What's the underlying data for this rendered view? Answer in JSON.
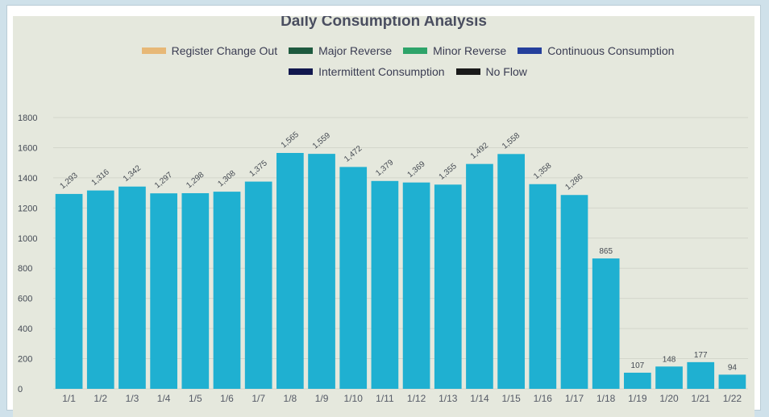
{
  "chart_data": {
    "type": "bar",
    "title": "Daily Consumption Analysis",
    "legend": [
      {
        "label": "Register Change Out",
        "color": "#e7b877"
      },
      {
        "label": "Major Reverse",
        "color": "#1e5a3f"
      },
      {
        "label": "Minor Reverse",
        "color": "#2ea46a"
      },
      {
        "label": "Continuous Consumption",
        "color": "#243f9c"
      },
      {
        "label": "Intermittent Consumption",
        "color": "#12184f"
      },
      {
        "label": "No Flow",
        "color": "#1a1a1a"
      }
    ],
    "categories": [
      "1/1",
      "1/2",
      "1/3",
      "1/4",
      "1/5",
      "1/6",
      "1/7",
      "1/8",
      "1/9",
      "1/10",
      "1/11",
      "1/12",
      "1/13",
      "1/14",
      "1/15",
      "1/16",
      "1/17",
      "1/18",
      "1/19",
      "1/20",
      "1/21",
      "1/22"
    ],
    "values": [
      1293,
      1316,
      1342,
      1297,
      1298,
      1308,
      1375,
      1565,
      1559,
      1472,
      1379,
      1369,
      1355,
      1492,
      1558,
      1358,
      1286,
      865,
      107,
      148,
      177,
      94
    ],
    "data_labels": [
      "1,293",
      "1,316",
      "1,342",
      "1,297",
      "1,298",
      "1,308",
      "1,375",
      "1,565",
      "1,559",
      "1,472",
      "1,379",
      "1,369",
      "1,355",
      "1,492",
      "1,558",
      "1,358",
      "1,286",
      "865",
      "107",
      "148",
      "177",
      "94"
    ],
    "yticks": [
      "0",
      "200",
      "400",
      "600",
      "800",
      "1000",
      "1200",
      "1400",
      "1600",
      "1800"
    ],
    "ylim": [
      0,
      1800
    ],
    "bar_color": "#1fb0d1",
    "grid": true,
    "legend_position": "top"
  }
}
